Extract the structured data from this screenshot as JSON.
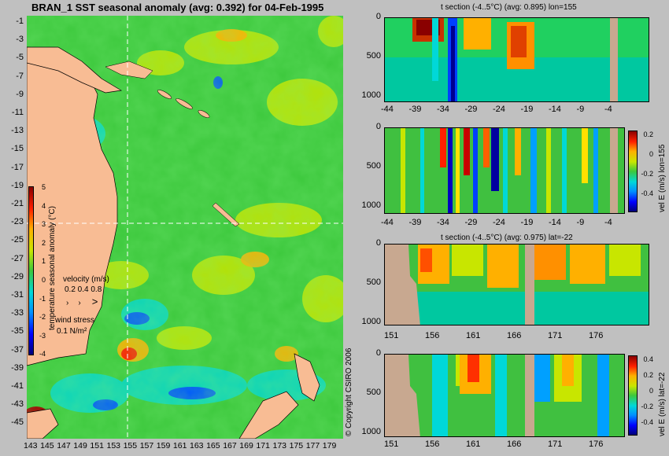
{
  "map": {
    "title": "BRAN_1 SST seasonal anomaly (avg: 0.392) for 04-Feb-1995",
    "lat_ticks": [
      "-1",
      "-3",
      "-5",
      "-7",
      "-9",
      "-11",
      "-13",
      "-15",
      "-17",
      "-19",
      "-21",
      "-23",
      "-25",
      "-27",
      "-29",
      "-31",
      "-33",
      "-35",
      "-37",
      "-39",
      "-41",
      "-43",
      "-45"
    ],
    "lon_ticks": [
      "143",
      "145",
      "147",
      "149",
      "151",
      "153",
      "155",
      "157",
      "159",
      "161",
      "163",
      "165",
      "167",
      "169",
      "171",
      "173",
      "175",
      "177",
      "179"
    ],
    "colorbar_label": "temperature seasonal anomaly (°C)",
    "colorbar_ticks": [
      "5",
      "4",
      "3",
      "2",
      "1",
      "0",
      "-1",
      "-2",
      "-3",
      "-4"
    ],
    "velocity_label": "velocity (m/s)",
    "velocity_scale": "0.2 0.4 0.8",
    "wind_label": "wind stress",
    "wind_scale": "0.1 N/m²",
    "copyright": "© Copyright CSIRO 2006"
  },
  "panels": {
    "p1": {
      "title": "t section (-4..5°C) (avg: 0.895) lon=155",
      "y_ticks": [
        "0",
        "500",
        "1000"
      ],
      "x_ticks": [
        "-44",
        "-39",
        "-34",
        "-29",
        "-24",
        "-19",
        "-14",
        "-9",
        "-4"
      ]
    },
    "p2": {
      "title": "",
      "y_ticks": [
        "0",
        "500",
        "1000"
      ],
      "x_ticks": [
        "-44",
        "-39",
        "-34",
        "-29",
        "-24",
        "-19",
        "-14",
        "-9",
        "-4"
      ],
      "cbar_label": "vel E (m/s) lon=155",
      "cbar_ticks": [
        "0.2",
        "0",
        "-0.2",
        "-0.4"
      ]
    },
    "p3": {
      "title": "t section (-4..5°C) (avg: 0.975) lat=-22",
      "y_ticks": [
        "0",
        "500",
        "1000"
      ],
      "x_ticks": [
        "151",
        "156",
        "161",
        "166",
        "171",
        "176"
      ]
    },
    "p4": {
      "title": "",
      "y_ticks": [
        "0",
        "500",
        "1000"
      ],
      "x_ticks": [
        "151",
        "156",
        "161",
        "166",
        "171",
        "176"
      ],
      "cbar_label": "vel E (m/s) lat=-22",
      "cbar_ticks": [
        "0.4",
        "0.2",
        "0",
        "-0.2",
        "-0.4"
      ]
    }
  }
}
